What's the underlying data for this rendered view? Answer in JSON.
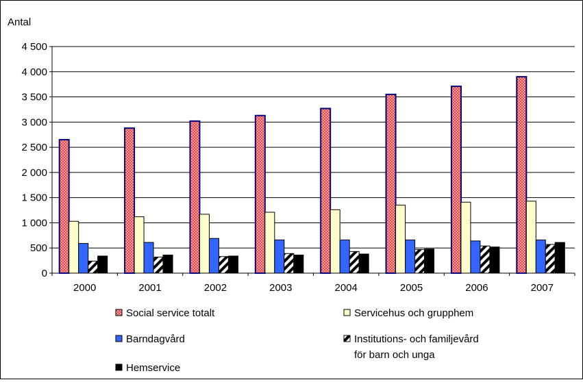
{
  "chart_data": {
    "type": "bar",
    "ylabel": "Antal",
    "ylim": [
      0,
      4500
    ],
    "yticks": [
      0,
      500,
      1000,
      1500,
      2000,
      2500,
      3000,
      3500,
      4000,
      4500
    ],
    "ytick_labels": [
      "0",
      "500",
      "1 000",
      "1 500",
      "2 000",
      "2 500",
      "3 000",
      "3 500",
      "4 000",
      "4 500"
    ],
    "categories": [
      "2000",
      "2001",
      "2002",
      "2003",
      "2004",
      "2005",
      "2006",
      "2007"
    ],
    "grid": true,
    "legend_position": "bottom",
    "series": [
      {
        "name": "Social service totalt",
        "pattern": "checker-red",
        "color": "#f08080",
        "values": [
          2650,
          2880,
          3020,
          3130,
          3270,
          3550,
          3710,
          3900
        ]
      },
      {
        "name": "Servicehus och grupphem",
        "pattern": "solid",
        "color": "#ffffcc",
        "values": [
          1030,
          1120,
          1170,
          1210,
          1260,
          1350,
          1410,
          1430
        ]
      },
      {
        "name": "Barndagvård",
        "pattern": "solid",
        "color": "#3366ff",
        "values": [
          590,
          610,
          690,
          660,
          660,
          660,
          640,
          660
        ]
      },
      {
        "name": "Institutions- och familjevård för barn och unga",
        "name_lines": [
          "Institutions- och familjevård",
          "för barn och unga"
        ],
        "pattern": "diagonal",
        "color": "#000000",
        "values": [
          240,
          320,
          330,
          390,
          430,
          470,
          540,
          570
        ]
      },
      {
        "name": "Hemservice",
        "pattern": "solid",
        "color": "#000000",
        "values": [
          340,
          360,
          340,
          360,
          380,
          480,
          520,
          610
        ]
      }
    ]
  }
}
